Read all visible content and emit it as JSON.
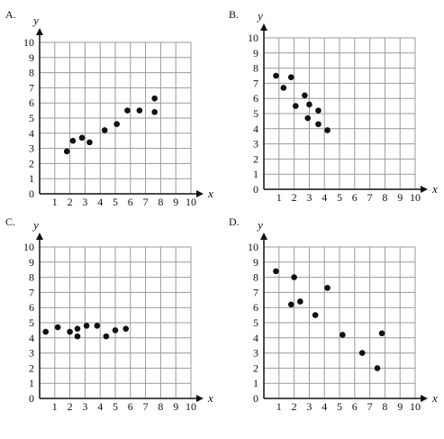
{
  "chart_data": [
    {
      "type": "scatter",
      "panel_label": "A.",
      "xlabel": "x",
      "ylabel": "y",
      "xlim": [
        0,
        10
      ],
      "ylim": [
        0,
        10
      ],
      "xticks": [
        "1",
        "2",
        "3",
        "4",
        "5",
        "6",
        "7",
        "8",
        "9",
        "10"
      ],
      "yticks": [
        "0",
        "1",
        "2",
        "3",
        "4",
        "5",
        "6",
        "7",
        "8",
        "9",
        "10"
      ],
      "grid": true,
      "points": [
        {
          "x": 1.8,
          "y": 2.8
        },
        {
          "x": 2.2,
          "y": 3.5
        },
        {
          "x": 2.8,
          "y": 3.7
        },
        {
          "x": 3.3,
          "y": 3.4
        },
        {
          "x": 4.3,
          "y": 4.2
        },
        {
          "x": 5.1,
          "y": 4.6
        },
        {
          "x": 5.8,
          "y": 5.5
        },
        {
          "x": 6.6,
          "y": 5.5
        },
        {
          "x": 7.6,
          "y": 6.3
        },
        {
          "x": 7.6,
          "y": 5.4
        }
      ]
    },
    {
      "type": "scatter",
      "panel_label": "B.",
      "xlabel": "x",
      "ylabel": "y",
      "xlim": [
        0,
        10
      ],
      "ylim": [
        0,
        10
      ],
      "xticks": [
        "1",
        "2",
        "3",
        "4",
        "5",
        "6",
        "7",
        "8",
        "9",
        "10"
      ],
      "yticks": [
        "0",
        "1",
        "2",
        "3",
        "4",
        "5",
        "6",
        "7",
        "8",
        "9",
        "10"
      ],
      "grid": true,
      "points": [
        {
          "x": 0.8,
          "y": 7.5
        },
        {
          "x": 1.3,
          "y": 6.7
        },
        {
          "x": 1.8,
          "y": 7.4
        },
        {
          "x": 2.1,
          "y": 5.5
        },
        {
          "x": 2.7,
          "y": 6.2
        },
        {
          "x": 3.0,
          "y": 5.6
        },
        {
          "x": 2.9,
          "y": 4.7
        },
        {
          "x": 3.6,
          "y": 5.2
        },
        {
          "x": 3.6,
          "y": 4.3
        },
        {
          "x": 4.2,
          "y": 3.9
        }
      ]
    },
    {
      "type": "scatter",
      "panel_label": "C.",
      "xlabel": "x",
      "ylabel": "y",
      "xlim": [
        0,
        10
      ],
      "ylim": [
        0,
        10
      ],
      "xticks": [
        "1",
        "2",
        "3",
        "4",
        "5",
        "6",
        "7",
        "8",
        "9",
        "10"
      ],
      "yticks": [
        "0",
        "1",
        "2",
        "3",
        "4",
        "5",
        "6",
        "7",
        "8",
        "9",
        "10"
      ],
      "grid": true,
      "points": [
        {
          "x": 0.4,
          "y": 4.4
        },
        {
          "x": 1.2,
          "y": 4.7
        },
        {
          "x": 2.0,
          "y": 4.4
        },
        {
          "x": 2.5,
          "y": 4.6
        },
        {
          "x": 2.5,
          "y": 4.1
        },
        {
          "x": 3.1,
          "y": 4.8
        },
        {
          "x": 3.8,
          "y": 4.8
        },
        {
          "x": 4.4,
          "y": 4.1
        },
        {
          "x": 5.0,
          "y": 4.5
        },
        {
          "x": 5.7,
          "y": 4.6
        }
      ]
    },
    {
      "type": "scatter",
      "panel_label": "D.",
      "xlabel": "x",
      "ylabel": "y",
      "xlim": [
        0,
        10
      ],
      "ylim": [
        0,
        10
      ],
      "xticks": [
        "1",
        "2",
        "3",
        "4",
        "5",
        "6",
        "7",
        "8",
        "9",
        "10"
      ],
      "yticks": [
        "0",
        "1",
        "2",
        "3",
        "4",
        "5",
        "6",
        "7",
        "8",
        "9",
        "10"
      ],
      "grid": true,
      "points": [
        {
          "x": 0.8,
          "y": 8.4
        },
        {
          "x": 1.8,
          "y": 6.2
        },
        {
          "x": 2.0,
          "y": 8.0
        },
        {
          "x": 2.4,
          "y": 6.4
        },
        {
          "x": 3.4,
          "y": 5.5
        },
        {
          "x": 4.2,
          "y": 7.3
        },
        {
          "x": 5.2,
          "y": 4.2
        },
        {
          "x": 6.5,
          "y": 3.0
        },
        {
          "x": 7.5,
          "y": 2.0
        },
        {
          "x": 7.8,
          "y": 4.3
        }
      ]
    }
  ]
}
